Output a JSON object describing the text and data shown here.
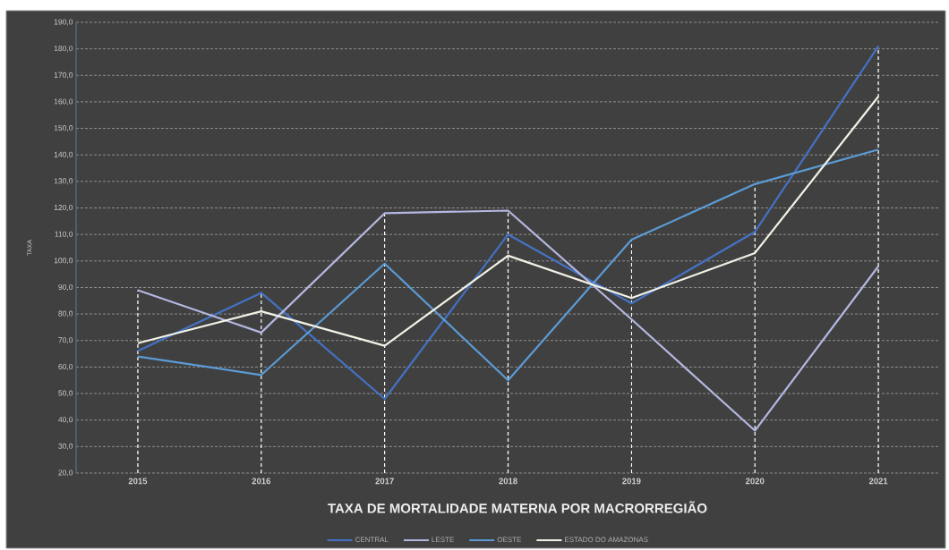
{
  "chart_data": {
    "type": "line",
    "title": "TAXA DE MORTALIDADE MATERNA POR MACRORREGIÃO",
    "ylabel": "TAXA",
    "categories": [
      "2015",
      "2016",
      "2017",
      "2018",
      "2019",
      "2020",
      "2021"
    ],
    "series": [
      {
        "name": "CENTRAL",
        "color": "#4472c4",
        "values": [
          66,
          88,
          48,
          110,
          84,
          111,
          181
        ]
      },
      {
        "name": "LESTE",
        "color": "#b4b7e0",
        "values": [
          89,
          73,
          118,
          119,
          78,
          36,
          98
        ]
      },
      {
        "name": "OESTE",
        "color": "#5b9bd5",
        "values": [
          64,
          57,
          99,
          55,
          108,
          129,
          142
        ]
      },
      {
        "name": "ESTADO DO AMAZONAS",
        "color": "#f2f2e6",
        "values": [
          69,
          81,
          68,
          102,
          86,
          103,
          162
        ]
      }
    ],
    "ylim": [
      20,
      190
    ],
    "yticks": [
      {
        "value": 20,
        "label": "20,0"
      },
      {
        "value": 30,
        "label": "30,0"
      },
      {
        "value": 40,
        "label": "40,0"
      },
      {
        "value": 50,
        "label": "50,0"
      },
      {
        "value": 60,
        "label": "60,0"
      },
      {
        "value": 70,
        "label": "70,0"
      },
      {
        "value": 80,
        "label": "80,0"
      },
      {
        "value": 90,
        "label": "90,0"
      },
      {
        "value": 100,
        "label": "100,0"
      },
      {
        "value": 110,
        "label": "110,0"
      },
      {
        "value": 120,
        "label": "120,0"
      },
      {
        "value": 130,
        "label": "130,0"
      },
      {
        "value": 140,
        "label": "140,0"
      },
      {
        "value": 150,
        "label": "150,0"
      },
      {
        "value": 160,
        "label": "160,0"
      },
      {
        "value": 170,
        "label": "170,0"
      },
      {
        "value": 180,
        "label": "180,0"
      },
      {
        "value": 190,
        "label": "190,0"
      }
    ],
    "grid": "y",
    "legend": "bottom",
    "ref_lines": [
      {
        "axis": "x",
        "value": "2015",
        "color": "#ffffff",
        "line_style": "dashed"
      },
      {
        "axis": "x",
        "value": "2016",
        "color": "#ffffff",
        "line_style": "dashed"
      },
      {
        "axis": "x",
        "value": "2017",
        "color": "#ffffff",
        "line_style": "dashed"
      },
      {
        "axis": "x",
        "value": "2018",
        "color": "#ffffff",
        "line_style": "dashed"
      },
      {
        "axis": "x",
        "value": "2019",
        "color": "#ffffff",
        "line_style": "dashed"
      },
      {
        "axis": "x",
        "value": "2020",
        "color": "#ffffff",
        "line_style": "dashed"
      },
      {
        "axis": "x",
        "value": "2021",
        "color": "#ffffff",
        "line_style": "dashed"
      }
    ]
  }
}
